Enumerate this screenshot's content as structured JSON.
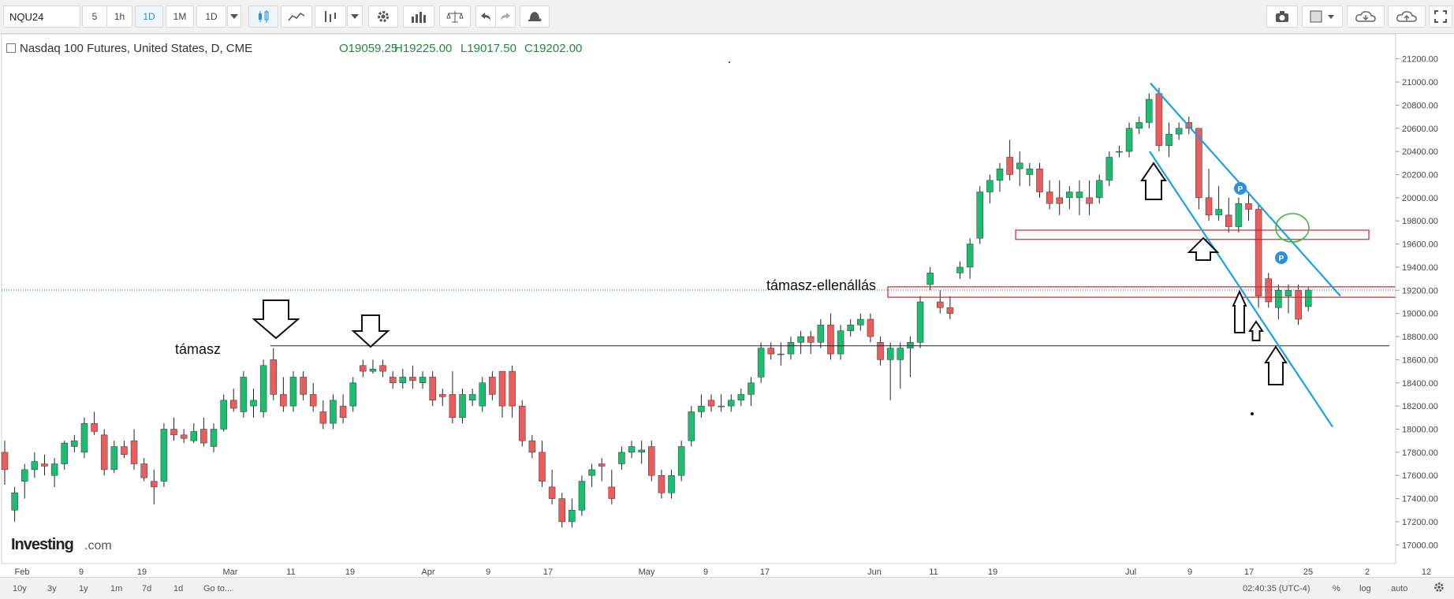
{
  "toolbar": {
    "symbol": "NQU24",
    "intervals": [
      "5",
      "1h",
      "1D",
      "1M",
      "1D"
    ],
    "active_interval": "1D",
    "icons": [
      "candles-icon",
      "line-chart-icon",
      "indicators-icon",
      "chevron-down-icon",
      "settings-icon",
      "bars-icon",
      "balance-icon",
      "undo-icon",
      "redo-icon",
      "alert-icon",
      "camera-icon",
      "color-box-icon",
      "cloud-download-icon",
      "cloud-upload-icon",
      "fullscreen-icon"
    ]
  },
  "legend": {
    "title": "Nasdaq 100 Futures, United States, D, CME",
    "open": "O19059.25",
    "high": "H19225.00",
    "low": "L19017.50",
    "close": "C19202.00"
  },
  "bottom_bar": {
    "ranges": [
      "10y",
      "3y",
      "1y",
      "1m",
      "7d",
      "1d",
      "Go to..."
    ],
    "time": "02:40:35 (UTC-4)",
    "options": [
      "%",
      "log",
      "auto"
    ],
    "gear_icon": "gear-icon"
  },
  "logo": {
    "bold": "Investing",
    "suffix": ".com"
  },
  "annotations": {
    "support_label": "támasz",
    "sr_label": "támasz-ellenállás"
  },
  "colors": {
    "up": "#1dbd71",
    "down": "#ec5c5c",
    "channel": "#1aa0e6",
    "zone": "#e02020",
    "circle": "#3cb53c",
    "price_tag": "#2a8fde"
  },
  "chart_data": {
    "type": "candlestick",
    "title": "Nasdaq 100 Futures, United States, D, CME",
    "ylim": [
      16900,
      21300
    ],
    "y_ticks": [
      17000,
      17200,
      17400,
      17600,
      17800,
      18000,
      18200,
      18400,
      18600,
      18800,
      19000,
      19200,
      19400,
      19600,
      19800,
      20000,
      20200,
      20400,
      20600,
      20800,
      21000,
      21200
    ],
    "x_ticks": [
      "Feb",
      "9",
      "19",
      "Mar",
      "11",
      "19",
      "Apr",
      "9",
      "17",
      "May",
      "9",
      "17",
      "Jun",
      "11",
      "19",
      "Jul",
      "9",
      "17",
      "25",
      "2",
      "12"
    ],
    "last_price": "19202.00",
    "candles": [
      [
        17800,
        17900,
        17520,
        17650
      ],
      [
        17300,
        17500,
        17200,
        17450
      ],
      [
        17550,
        17700,
        17400,
        17650
      ],
      [
        17650,
        17800,
        17580,
        17720
      ],
      [
        17700,
        17780,
        17600,
        17680
      ],
      [
        17600,
        17750,
        17500,
        17700
      ],
      [
        17700,
        17900,
        17650,
        17880
      ],
      [
        17850,
        17950,
        17800,
        17900
      ],
      [
        17800,
        18100,
        17750,
        18050
      ],
      [
        18050,
        18150,
        17950,
        17980
      ],
      [
        17950,
        18000,
        17600,
        17650
      ],
      [
        17650,
        17900,
        17620,
        17850
      ],
      [
        17850,
        17900,
        17750,
        17780
      ],
      [
        17900,
        18000,
        17650,
        17700
      ],
      [
        17700,
        17750,
        17550,
        17580
      ],
      [
        17550,
        17650,
        17350,
        17500
      ],
      [
        17550,
        18050,
        17500,
        18000
      ],
      [
        18000,
        18100,
        17900,
        17950
      ],
      [
        17950,
        18000,
        17880,
        17920
      ],
      [
        17900,
        18050,
        17880,
        17980
      ],
      [
        18000,
        18100,
        17850,
        17880
      ],
      [
        17850,
        18050,
        17800,
        18000
      ],
      [
        18000,
        18300,
        17980,
        18250
      ],
      [
        18250,
        18350,
        18150,
        18180
      ],
      [
        18150,
        18500,
        18100,
        18450
      ],
      [
        18200,
        18350,
        18100,
        18250
      ],
      [
        18150,
        18600,
        18100,
        18550
      ],
      [
        18600,
        18700,
        18250,
        18300
      ],
      [
        18300,
        18450,
        18150,
        18200
      ],
      [
        18200,
        18500,
        18150,
        18450
      ],
      [
        18450,
        18500,
        18250,
        18300
      ],
      [
        18300,
        18400,
        18150,
        18200
      ],
      [
        18150,
        18250,
        18000,
        18050
      ],
      [
        18050,
        18300,
        18000,
        18250
      ],
      [
        18200,
        18300,
        18050,
        18100
      ],
      [
        18200,
        18450,
        18150,
        18400
      ],
      [
        18550,
        18600,
        18450,
        18500
      ],
      [
        18500,
        18600,
        18480,
        18520
      ],
      [
        18550,
        18600,
        18450,
        18500
      ],
      [
        18450,
        18500,
        18350,
        18400
      ],
      [
        18400,
        18520,
        18350,
        18450
      ],
      [
        18450,
        18550,
        18350,
        18420
      ],
      [
        18400,
        18500,
        18350,
        18450
      ],
      [
        18450,
        18500,
        18200,
        18250
      ],
      [
        18300,
        18350,
        18200,
        18280
      ],
      [
        18300,
        18500,
        18050,
        18100
      ],
      [
        18100,
        18350,
        18050,
        18300
      ],
      [
        18250,
        18350,
        18200,
        18300
      ],
      [
        18200,
        18450,
        18150,
        18400
      ],
      [
        18450,
        18500,
        18250,
        18300
      ],
      [
        18500,
        18500,
        18100,
        18200
      ],
      [
        18500,
        18550,
        18100,
        18200
      ],
      [
        18200,
        18250,
        17850,
        17900
      ],
      [
        17900,
        17950,
        17750,
        17800
      ],
      [
        17800,
        17900,
        17500,
        17550
      ],
      [
        17500,
        17650,
        17350,
        17400
      ],
      [
        17400,
        17450,
        17150,
        17200
      ],
      [
        17200,
        17400,
        17150,
        17300
      ],
      [
        17300,
        17600,
        17250,
        17550
      ],
      [
        17600,
        17700,
        17500,
        17650
      ],
      [
        17700,
        17750,
        17550,
        17680
      ],
      [
        17500,
        17650,
        17350,
        17400
      ],
      [
        17700,
        17850,
        17650,
        17800
      ],
      [
        17800,
        17900,
        17750,
        17850
      ],
      [
        17800,
        17900,
        17700,
        17820
      ],
      [
        17850,
        17900,
        17550,
        17600
      ],
      [
        17600,
        17650,
        17400,
        17450
      ],
      [
        17450,
        17650,
        17400,
        17600
      ],
      [
        17600,
        17900,
        17550,
        17850
      ],
      [
        17900,
        18200,
        17850,
        18150
      ],
      [
        18150,
        18300,
        18100,
        18200
      ],
      [
        18250,
        18300,
        18150,
        18200
      ],
      [
        18200,
        18300,
        18150,
        18200
      ],
      [
        18200,
        18300,
        18150,
        18250
      ],
      [
        18250,
        18350,
        18200,
        18300
      ],
      [
        18300,
        18450,
        18200,
        18400
      ],
      [
        18450,
        18750,
        18400,
        18700
      ],
      [
        18700,
        18750,
        18600,
        18650
      ],
      [
        18650,
        18750,
        18550,
        18650
      ],
      [
        18650,
        18800,
        18600,
        18750
      ],
      [
        18750,
        18850,
        18650,
        18800
      ],
      [
        18800,
        18850,
        18650,
        18750
      ],
      [
        18750,
        18950,
        18700,
        18900
      ],
      [
        18900,
        19000,
        18600,
        18650
      ],
      [
        18650,
        18900,
        18600,
        18850
      ],
      [
        18850,
        18950,
        18800,
        18900
      ],
      [
        18900,
        19000,
        18850,
        18950
      ],
      [
        18950,
        19000,
        18750,
        18800
      ],
      [
        18750,
        18800,
        18550,
        18600
      ],
      [
        18600,
        18750,
        18250,
        18700
      ],
      [
        18600,
        18750,
        18350,
        18700
      ],
      [
        18700,
        18800,
        18450,
        18750
      ],
      [
        18750,
        19150,
        18700,
        19100
      ],
      [
        19250,
        19400,
        19200,
        19350
      ],
      [
        19100,
        19200,
        19000,
        19050
      ],
      [
        19050,
        19150,
        18950,
        19000
      ],
      [
        19350,
        19450,
        19300,
        19400
      ],
      [
        19400,
        19650,
        19300,
        19600
      ],
      [
        19650,
        20100,
        19600,
        20050
      ],
      [
        20050,
        20200,
        19950,
        20150
      ],
      [
        20150,
        20300,
        20050,
        20250
      ],
      [
        20350,
        20500,
        20150,
        20200
      ],
      [
        20250,
        20400,
        20100,
        20300
      ],
      [
        20200,
        20300,
        20100,
        20250
      ],
      [
        20250,
        20300,
        20000,
        20050
      ],
      [
        20050,
        20150,
        19900,
        19950
      ],
      [
        20000,
        20150,
        19850,
        19950
      ],
      [
        20000,
        20100,
        19900,
        20050
      ],
      [
        20000,
        20150,
        19850,
        20050
      ],
      [
        20000,
        20150,
        19850,
        19950
      ],
      [
        20000,
        20200,
        19950,
        20150
      ],
      [
        20150,
        20400,
        20100,
        20350
      ],
      [
        20400,
        20450,
        20350,
        20400
      ],
      [
        20400,
        20650,
        20350,
        20600
      ],
      [
        20600,
        20700,
        20550,
        20650
      ],
      [
        20650,
        20900,
        20600,
        20850
      ],
      [
        20900,
        20950,
        20400,
        20450
      ],
      [
        20450,
        20650,
        20350,
        20550
      ],
      [
        20550,
        20650,
        20500,
        20600
      ],
      [
        20650,
        20700,
        20550,
        20600
      ],
      [
        20600,
        20600,
        19900,
        20000
      ],
      [
        20000,
        20250,
        19800,
        19850
      ],
      [
        19850,
        20100,
        19800,
        19900
      ],
      [
        19850,
        20000,
        19700,
        19750
      ],
      [
        19750,
        20000,
        19700,
        19950
      ],
      [
        19950,
        20050,
        19800,
        19900
      ],
      [
        19900,
        19950,
        19050,
        19150
      ],
      [
        19300,
        19350,
        19050,
        19100
      ],
      [
        19050,
        19250,
        18950,
        19200
      ],
      [
        19150,
        19250,
        19000,
        19200
      ],
      [
        19200,
        19250,
        18900,
        18950
      ],
      [
        19059.25,
        19225,
        19017.5,
        19202
      ]
    ],
    "horizontal_lines": [
      {
        "price": 18720,
        "label": "támasz"
      }
    ],
    "zones": [
      {
        "from": 19640,
        "to": 19720
      },
      {
        "from": 19140,
        "to": 19230,
        "label": "támasz-ellenállás"
      }
    ],
    "channel": [
      [
        [
          21000,
          20410
        ],
        [
          19760,
          18620
        ]
      ]
    ],
    "markers": [
      "P",
      "P"
    ]
  }
}
